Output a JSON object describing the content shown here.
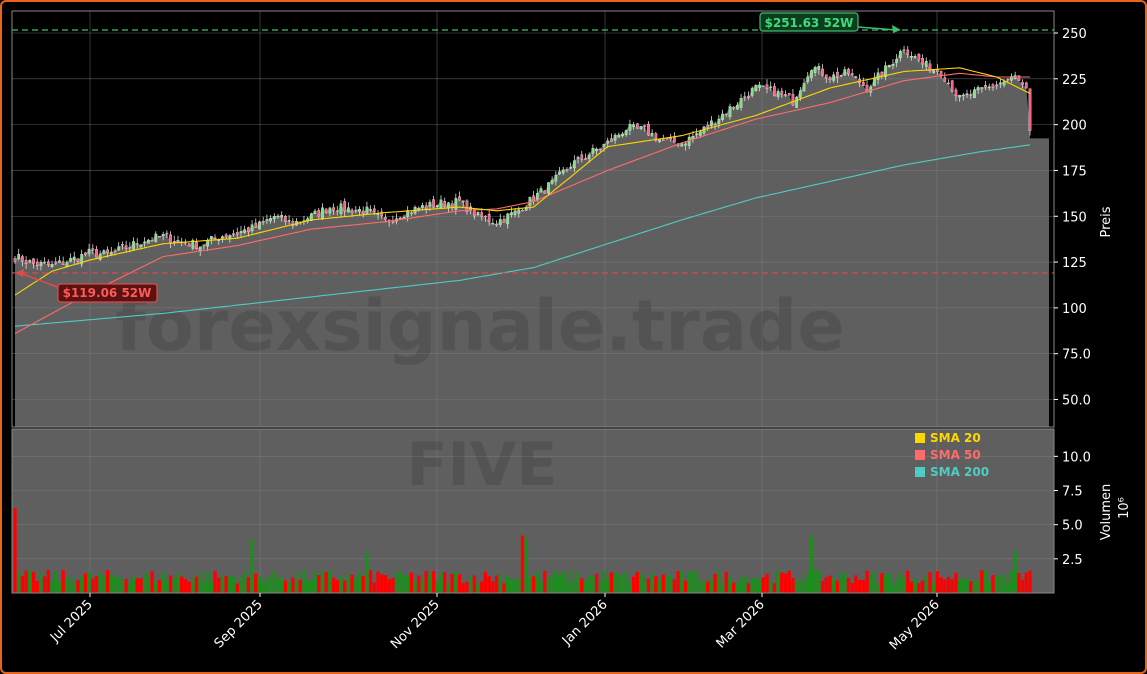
{
  "chart_data": [
    {
      "type": "candlestick",
      "ticker_watermark": "FIVE",
      "site_watermark": "forexsignale.trade",
      "ylabel": "Preis",
      "ylim": [
        35,
        262
      ],
      "y_ticks": [
        "50.0",
        "75.0",
        "100",
        "125",
        "150",
        "175",
        "200",
        "225",
        "250"
      ],
      "y_tick_values": [
        50,
        75,
        100,
        125,
        150,
        175,
        200,
        225,
        250
      ],
      "x_labels": [
        "Jul 2025",
        "Sep 2025",
        "Nov 2025",
        "Jan 2026",
        "Mar 2026",
        "May 2026"
      ],
      "high_52w": {
        "value": 251.63,
        "label": "$251.63 52W",
        "color": "#3fbf6a"
      },
      "low_52w": {
        "value": 119.06,
        "label": "$119.06 52W",
        "color": "#e04a4a"
      },
      "last_close": 192.5,
      "close_anchors": [
        [
          0,
          128
        ],
        [
          5,
          124
        ],
        [
          10,
          123
        ],
        [
          15,
          126
        ],
        [
          20,
          130
        ],
        [
          25,
          129
        ],
        [
          30,
          133
        ],
        [
          35,
          137
        ],
        [
          40,
          139
        ],
        [
          45,
          136
        ],
        [
          50,
          134
        ],
        [
          55,
          139
        ],
        [
          60,
          141
        ],
        [
          65,
          144
        ],
        [
          70,
          150
        ],
        [
          75,
          146
        ],
        [
          80,
          150
        ],
        [
          85,
          155
        ],
        [
          90,
          154
        ],
        [
          95,
          153
        ],
        [
          100,
          147
        ],
        [
          105,
          152
        ],
        [
          110,
          155
        ],
        [
          115,
          157
        ],
        [
          120,
          158
        ],
        [
          125,
          150
        ],
        [
          130,
          147
        ],
        [
          135,
          152
        ],
        [
          140,
          160
        ],
        [
          145,
          168
        ],
        [
          150,
          178
        ],
        [
          155,
          184
        ],
        [
          160,
          190
        ],
        [
          165,
          198
        ],
        [
          170,
          197
        ],
        [
          175,
          191
        ],
        [
          180,
          190
        ],
        [
          185,
          196
        ],
        [
          190,
          204
        ],
        [
          195,
          212
        ],
        [
          200,
          220
        ],
        [
          205,
          218
        ],
        [
          210,
          213
        ],
        [
          215,
          232
        ],
        [
          220,
          226
        ],
        [
          225,
          228
        ],
        [
          230,
          220
        ],
        [
          235,
          230
        ],
        [
          240,
          242
        ],
        [
          245,
          233
        ],
        [
          250,
          229
        ],
        [
          255,
          214
        ],
        [
          260,
          218
        ],
        [
          265,
          222
        ],
        [
          270,
          226
        ],
        [
          273,
          218
        ],
        [
          274,
          195
        ]
      ],
      "sma_legend": [
        {
          "name": "SMA 20",
          "color": "#ffd700"
        },
        {
          "name": "SMA 50",
          "color": "#ff6b6b"
        },
        {
          "name": "SMA 200",
          "color": "#4ecdc4"
        }
      ],
      "sma20_anchors": [
        [
          0,
          107
        ],
        [
          10,
          120
        ],
        [
          20,
          126
        ],
        [
          40,
          135
        ],
        [
          60,
          138
        ],
        [
          80,
          148
        ],
        [
          100,
          152
        ],
        [
          120,
          155
        ],
        [
          130,
          153
        ],
        [
          140,
          155
        ],
        [
          160,
          188
        ],
        [
          180,
          194
        ],
        [
          200,
          205
        ],
        [
          220,
          220
        ],
        [
          240,
          229
        ],
        [
          255,
          231
        ],
        [
          265,
          226
        ],
        [
          274,
          217
        ]
      ],
      "sma50_anchors": [
        [
          0,
          86
        ],
        [
          20,
          108
        ],
        [
          40,
          128
        ],
        [
          60,
          134
        ],
        [
          80,
          143
        ],
        [
          100,
          147
        ],
        [
          120,
          153
        ],
        [
          130,
          154
        ],
        [
          140,
          158
        ],
        [
          160,
          175
        ],
        [
          180,
          190
        ],
        [
          200,
          203
        ],
        [
          220,
          212
        ],
        [
          240,
          224
        ],
        [
          255,
          228
        ],
        [
          265,
          226
        ],
        [
          274,
          226
        ]
      ],
      "sma200_anchors": [
        [
          0,
          90
        ],
        [
          40,
          97
        ],
        [
          80,
          106
        ],
        [
          120,
          115
        ],
        [
          140,
          122
        ],
        [
          160,
          135
        ],
        [
          180,
          148
        ],
        [
          200,
          160
        ],
        [
          220,
          169
        ],
        [
          240,
          178
        ],
        [
          260,
          185
        ],
        [
          274,
          189
        ]
      ]
    },
    {
      "type": "bar",
      "ylabel": "Volumen",
      "yscale_label": "10⁶",
      "ylim": [
        0,
        12
      ],
      "y_ticks": [
        "2.5",
        "5.0",
        "7.5",
        "10.0"
      ],
      "y_tick_values": [
        2.5,
        5.0,
        7.5,
        10.0
      ],
      "up_color": "#1e8c1e",
      "down_color": "#ff0000",
      "spikes": [
        [
          0,
          6.2
        ],
        [
          64,
          4.0
        ],
        [
          95,
          3.0
        ],
        [
          137,
          4.2
        ],
        [
          138,
          4.1
        ],
        [
          215,
          4.2
        ],
        [
          270,
          3.1
        ]
      ]
    }
  ]
}
